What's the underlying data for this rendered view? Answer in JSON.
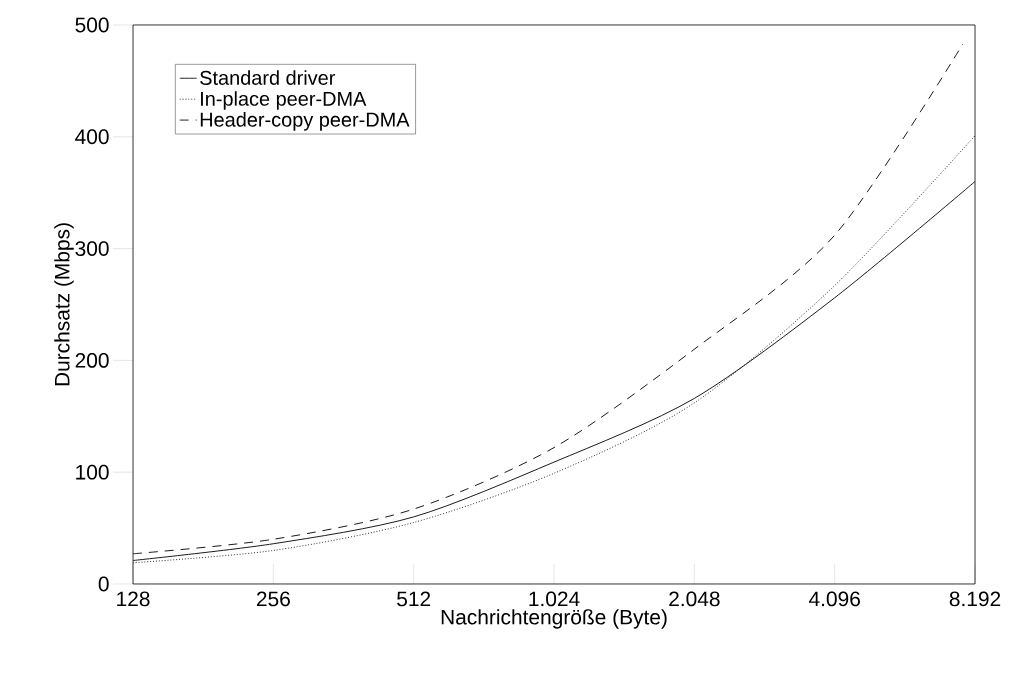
{
  "chart_data": {
    "type": "line",
    "xlabel": "Nachrichtengröße (Byte)",
    "ylabel": "Durchsatz (Mbps)",
    "log": "x",
    "x": [
      128,
      256,
      512,
      1024,
      2048,
      4096,
      8192
    ],
    "xlim": [
      128,
      8192
    ],
    "xticks": [
      128,
      256,
      512,
      {
        "value": 1024,
        "label": "1.024"
      },
      {
        "value": 2048,
        "label": "2.048"
      },
      {
        "value": 4096,
        "label": "4.096"
      },
      {
        "value": 8192,
        "label": "8.192"
      }
    ],
    "ylim": [
      0,
      500
    ],
    "yticks": [
      0,
      100,
      200,
      300,
      400,
      500
    ],
    "legend": "top left",
    "grid": false,
    "marker": "none",
    "series": [
      {
        "name": "Standard driver",
        "color": "#000000",
        "line_style": "solid",
        "values": [
          21,
          36,
          60,
          109,
          166,
          256,
          360
        ]
      },
      {
        "name": "In-place peer-DMA",
        "color": "#000000",
        "line_style": "dotted",
        "values": [
          19,
          30,
          55,
          99,
          162,
          267,
          401
        ]
      },
      {
        "name": "Header-copy peer-DMA",
        "color": "#000000",
        "line_style": "dashed",
        "x": [
          128,
          256,
          512,
          1024,
          2048,
          4096,
          7717
        ],
        "values": [
          27,
          40,
          67,
          122,
          210,
          312,
          483
        ]
      }
    ]
  }
}
